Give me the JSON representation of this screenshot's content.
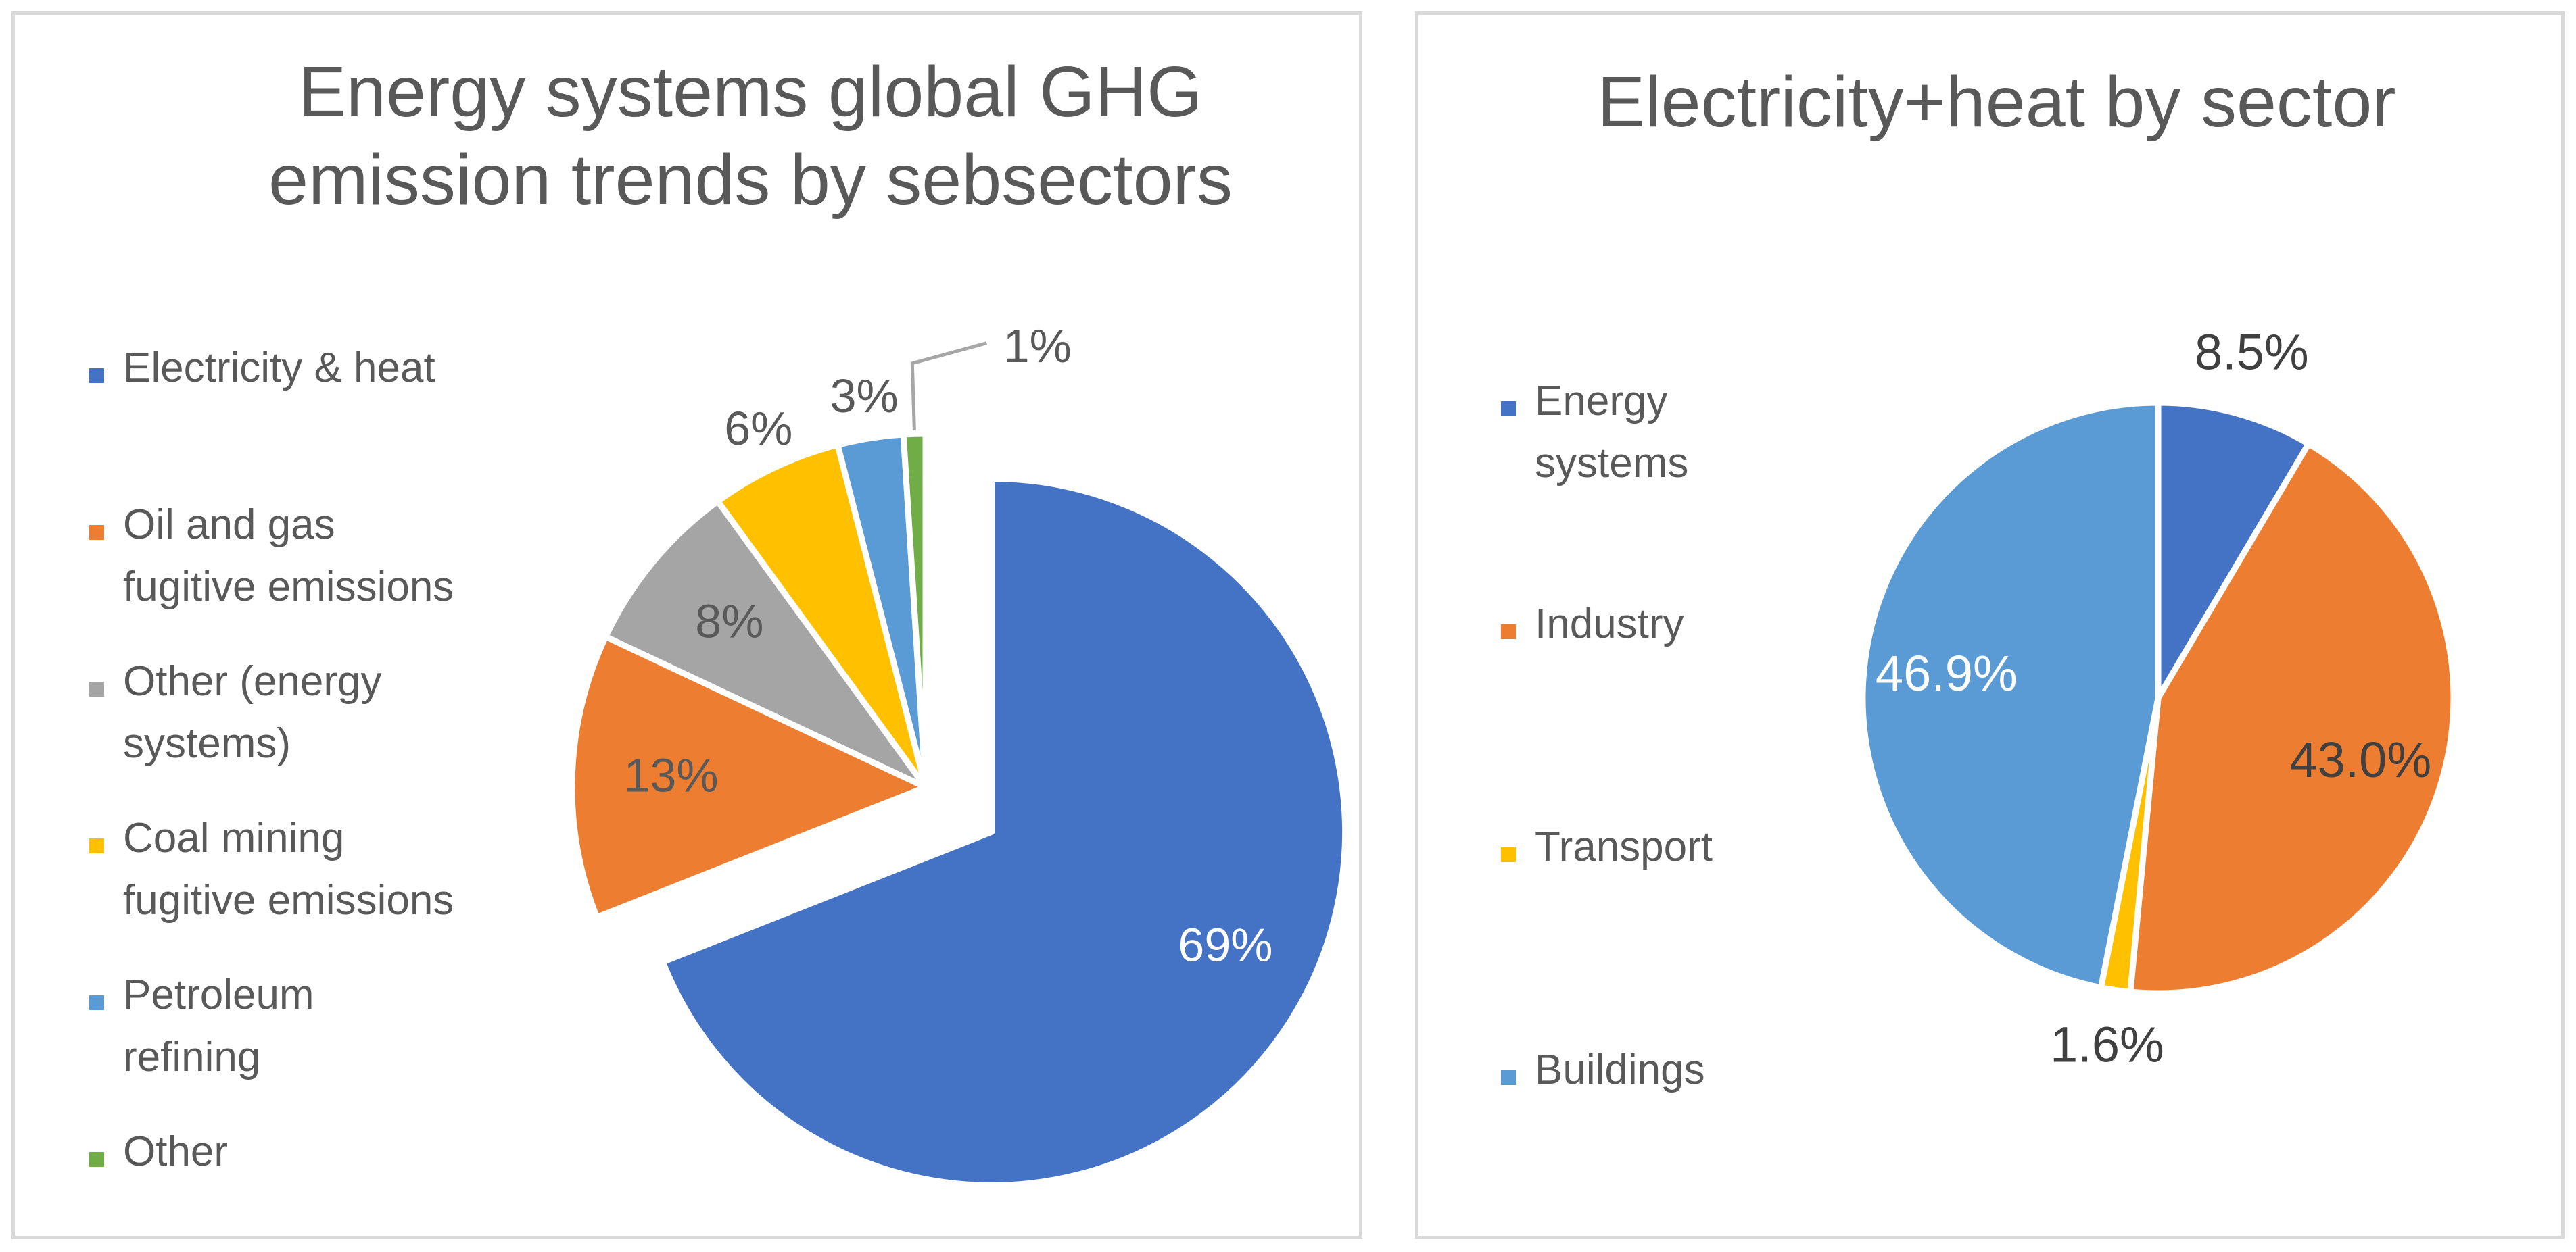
{
  "chart_data": [
    {
      "type": "pie",
      "title_lines": [
        "Energy systems global GHG",
        "emission trends by sebsectors"
      ],
      "series": [
        {
          "name": "Electricity & heat",
          "value": 69,
          "label": "69%",
          "color": "#4472C4",
          "exploded": true
        },
        {
          "name": "Oil and gas fugitive emissions",
          "value": 13,
          "label": "13%",
          "color": "#ED7D31"
        },
        {
          "name": "Other (energy systems)",
          "value": 8,
          "label": "8%",
          "color": "#A5A5A5"
        },
        {
          "name": "Coal mining fugitive emissions",
          "value": 6,
          "label": "6%",
          "color": "#FFC000"
        },
        {
          "name": "Petroleum refining",
          "value": 3,
          "label": "3%",
          "color": "#5B9BD5"
        },
        {
          "name": "Other",
          "value": 1,
          "label": "1%",
          "color": "#70AD47"
        }
      ],
      "legend_lines": [
        [
          "Electricity & heat"
        ],
        [
          "Oil and gas",
          "fugitive emissions"
        ],
        [
          "Other (energy",
          "systems)"
        ],
        [
          "Coal mining",
          "fugitive emissions"
        ],
        [
          "Petroleum",
          "refining"
        ],
        [
          "Other"
        ]
      ],
      "legend_position": "left"
    },
    {
      "type": "pie",
      "title_lines": [
        "Electricity+heat by sector"
      ],
      "series": [
        {
          "name": "Energy systems",
          "value": 8.5,
          "label": "8.5%",
          "color": "#4472C4"
        },
        {
          "name": "Industry",
          "value": 43.0,
          "label": "43.0%",
          "color": "#ED7D31"
        },
        {
          "name": "Transport",
          "value": 1.6,
          "label": "1.6%",
          "color": "#FFC000"
        },
        {
          "name": "Buildings",
          "value": 46.9,
          "label": "46.9%",
          "color": "#5B9BD5"
        }
      ],
      "legend_lines": [
        [
          "Energy",
          "systems"
        ],
        [
          "Industry"
        ],
        [
          "Transport"
        ],
        [
          "Buildings"
        ]
      ],
      "legend_position": "left"
    }
  ]
}
